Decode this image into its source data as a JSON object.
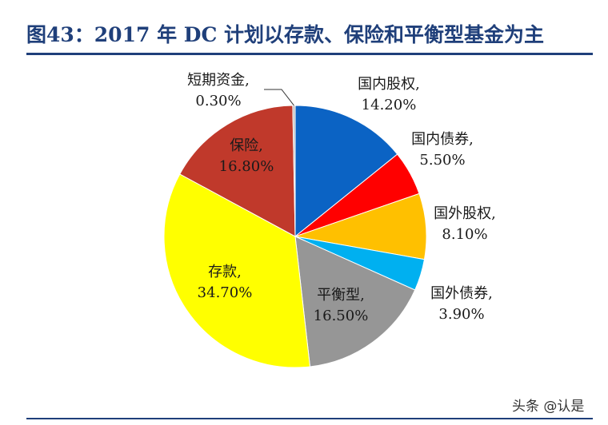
{
  "header": {
    "title": "图43：2017 年 DC 计划以存款、保险和平衡型基金为主"
  },
  "watermark": "头条 @认是",
  "chart_data": {
    "type": "pie",
    "title": "图43：2017 年 DC 计划以存款、保险和平衡型基金为主",
    "slices": [
      {
        "name": "国内股权",
        "value": 14.2,
        "label": "14.20%",
        "color": "#0b63c4"
      },
      {
        "name": "国内债券",
        "value": 5.5,
        "label": "5.50%",
        "color": "#ff0000"
      },
      {
        "name": "国外股权",
        "value": 8.1,
        "label": "8.10%",
        "color": "#ffc000"
      },
      {
        "name": "国外债券",
        "value": 3.9,
        "label": "3.90%",
        "color": "#00b0f0"
      },
      {
        "name": "平衡型",
        "value": 16.5,
        "label": "16.50%",
        "color": "#969696"
      },
      {
        "name": "存款",
        "value": 34.7,
        "label": "34.70%",
        "color": "#ffff00"
      },
      {
        "name": "保险",
        "value": 16.8,
        "label": "16.80%",
        "color": "#c0392b"
      },
      {
        "name": "短期资金",
        "value": 0.3,
        "label": "0.30%",
        "color": "#bfbfbf"
      }
    ]
  }
}
